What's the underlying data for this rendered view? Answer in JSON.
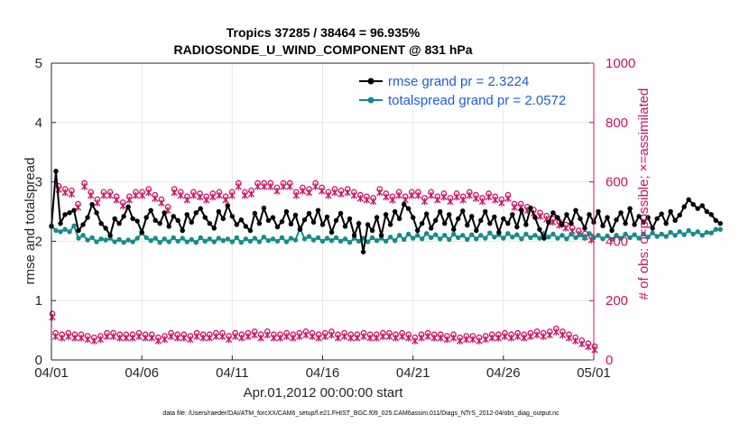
{
  "chart_data": {
    "type": "line",
    "title_line1": "Tropics 37285 / 38464 = 96.935%",
    "title_line2": "RADIOSONDE_U_WIND_COMPONENT @ 831 hPa",
    "xlabel": "Apr.01,2012 00:00:00 start",
    "ylabel_left": "rmse and totalspread",
    "ylabel_right": "# of obs: o=possible; ×=assimilated",
    "xlim": [
      0,
      30
    ],
    "ylim_left": [
      0,
      5
    ],
    "ylim_right": [
      0,
      1000
    ],
    "x_ticks": [
      0,
      5,
      10,
      15,
      20,
      25,
      30
    ],
    "x_tick_labels": [
      "04/01",
      "04/06",
      "04/11",
      "04/16",
      "04/21",
      "04/26",
      "05/01"
    ],
    "y_left_ticks": [
      "0",
      "1",
      "2",
      "3",
      "4",
      "5"
    ],
    "y_right_ticks": [
      "0",
      "200",
      "400",
      "600",
      "800",
      "1000"
    ],
    "legend": {
      "position": "top-right",
      "rmse_label": "rmse grand pr = 2.3224",
      "spread_label": "totalspread grand pr = 2.0572"
    },
    "colors": {
      "rmse": "#000000",
      "spread": "#168b8b",
      "obs": "#d11060",
      "legend_text": "#1a5fd6"
    },
    "footnote": "data file: /Users/raeder/DAI/ATM_forcXX/CAM6_setup/f.e21.FHIST_BGC.f09_025.CAM6assim.011/Diags_NTrS_2012-04/obs_diag_output.nc",
    "step_days": 0.25,
    "series": [
      {
        "name": "rmse",
        "values": [
          2.25,
          3.18,
          2.3,
          2.45,
          2.48,
          2.52,
          2.18,
          2.28,
          2.4,
          2.62,
          2.48,
          2.3,
          2.22,
          2.1,
          2.38,
          2.3,
          2.42,
          2.58,
          2.38,
          2.34,
          2.15,
          2.4,
          2.52,
          2.35,
          2.3,
          2.48,
          2.25,
          2.42,
          2.35,
          2.18,
          2.45,
          2.32,
          2.48,
          2.55,
          2.4,
          2.3,
          2.22,
          2.5,
          2.38,
          2.6,
          2.42,
          2.28,
          2.36,
          2.25,
          2.18,
          2.47,
          2.3,
          2.56,
          2.35,
          2.4,
          2.24,
          2.33,
          2.5,
          2.29,
          2.44,
          2.2,
          2.36,
          2.47,
          2.32,
          2.52,
          2.28,
          2.41,
          2.15,
          2.35,
          2.47,
          2.25,
          2.38,
          2.1,
          2.3,
          1.82,
          2.28,
          2.18,
          2.4,
          2.1,
          2.45,
          2.28,
          2.5,
          2.38,
          2.62,
          2.55,
          2.4,
          2.18,
          2.3,
          2.46,
          2.22,
          2.35,
          2.5,
          2.3,
          2.45,
          2.2,
          2.38,
          2.51,
          2.27,
          2.42,
          2.18,
          2.35,
          2.5,
          2.3,
          2.41,
          2.15,
          2.38,
          2.3,
          2.45,
          2.24,
          2.52,
          2.28,
          2.56,
          2.4,
          2.2,
          2.05,
          2.32,
          2.48,
          2.4,
          2.28,
          2.45,
          2.3,
          2.52,
          2.38,
          2.22,
          2.45,
          2.32,
          2.5,
          2.26,
          2.4,
          2.18,
          2.36,
          2.48,
          2.3,
          2.55,
          2.28,
          2.42,
          2.32,
          2.4,
          2.22,
          2.38,
          2.46,
          2.3,
          2.5,
          2.35,
          2.44,
          2.58,
          2.7,
          2.62,
          2.55,
          2.6,
          2.5,
          2.45,
          2.35,
          2.3
        ]
      },
      {
        "name": "totalspread",
        "values": [
          2.26,
          2.18,
          2.16,
          2.2,
          2.16,
          2.26,
          2.05,
          2.1,
          2.02,
          2.06,
          1.99,
          2.04,
          2.02,
          2.05,
          1.99,
          2.03,
          1.98,
          2.02,
          1.99,
          2.05,
          2.14,
          2.06,
          2.01,
          2.05,
          1.98,
          2.04,
          1.99,
          2.06,
          2.0,
          2.05,
          1.99,
          2.03,
          1.98,
          2.06,
          2.0,
          2.04,
          1.99,
          2.05,
          2.01,
          2.04,
          1.99,
          2.06,
          1.98,
          2.04,
          2.0,
          2.05,
          1.99,
          2.07,
          2.01,
          2.04,
          2.0,
          2.06,
          1.99,
          2.05,
          2.02,
          2.22,
          2.04,
          2.08,
          2.02,
          2.06,
          2.0,
          2.05,
          2.01,
          2.06,
          2.0,
          2.04,
          1.98,
          2.05,
          2.0,
          2.05,
          1.99,
          2.06,
          2.01,
          2.05,
          2.0,
          2.07,
          2.01,
          2.1,
          2.03,
          2.12,
          2.05,
          2.1,
          2.04,
          2.13,
          2.06,
          2.11,
          2.04,
          2.1,
          2.03,
          2.12,
          2.06,
          2.1,
          2.03,
          2.11,
          2.04,
          2.1,
          2.05,
          2.14,
          2.07,
          2.11,
          2.05,
          2.13,
          2.07,
          2.11,
          2.04,
          2.12,
          2.06,
          2.1,
          2.05,
          2.13,
          2.07,
          2.12,
          2.05,
          2.1,
          2.04,
          2.12,
          2.06,
          2.11,
          2.05,
          2.13,
          2.06,
          2.1,
          2.04,
          2.09,
          2.03,
          2.1,
          2.05,
          2.12,
          2.06,
          2.11,
          2.05,
          2.12,
          2.07,
          2.14,
          2.08,
          2.12,
          2.08,
          2.15,
          2.1,
          2.16,
          2.11,
          2.18,
          2.12,
          2.16,
          2.1,
          2.15,
          2.14,
          2.2,
          2.2
        ]
      },
      {
        "name": "obs_possible",
        "values": [
          150,
          85,
          580,
          80,
          570,
          85,
          565,
          80,
          520,
          80,
          590,
          75,
          560,
          70,
          535,
          75,
          560,
          85,
          560,
          85,
          545,
          80,
          525,
          80,
          545,
          80,
          560,
          85,
          560,
          80,
          570,
          80,
          550,
          70,
          535,
          75,
          510,
          85,
          570,
          80,
          560,
          80,
          545,
          75,
          560,
          85,
          555,
          80,
          545,
          80,
          555,
          85,
          560,
          85,
          545,
          75,
          560,
          85,
          590,
          80,
          560,
          85,
          565,
          90,
          590,
          80,
          590,
          90,
          590,
          80,
          575,
          80,
          590,
          85,
          590,
          80,
          560,
          85,
          575,
          90,
          570,
          85,
          590,
          80,
          575,
          85,
          560,
          90,
          570,
          80,
          565,
          85,
          570,
          80,
          560,
          80,
          550,
          85,
          545,
          80,
          540,
          80,
          570,
          85,
          555,
          85,
          545,
          80,
          560,
          85,
          545,
          80,
          560,
          70,
          560,
          80,
          540,
          85,
          560,
          80,
          545,
          80,
          555,
          75,
          540,
          80,
          555,
          70,
          545,
          75,
          560,
          75,
          550,
          70,
          540,
          75,
          555,
          80,
          545,
          80,
          535,
          85,
          550,
          80,
          520,
          85,
          520,
          80,
          510,
          85,
          500,
          90,
          490,
          85,
          480,
          90,
          470,
          100,
          460,
          90,
          450,
          80,
          440,
          70,
          430,
          60,
          420,
          50,
          410,
          40
        ],
        "sample_x": [
          0.1,
          0.5,
          1.0,
          1.5,
          2.0,
          2.5,
          3.0,
          3.5,
          4.0,
          4.5,
          5.0,
          5.5,
          6.0,
          6.5,
          7.0,
          7.5,
          8.0,
          8.5,
          9.0,
          9.5,
          10.0,
          10.5,
          11.0,
          11.5,
          12.0,
          12.5,
          13.0,
          13.5,
          14.0,
          14.5,
          15.0,
          15.5,
          16.0,
          16.5,
          17.0,
          17.5,
          18.0,
          18.5,
          19.0,
          19.5,
          20.0,
          20.5,
          21.0,
          21.5,
          22.0,
          22.5,
          23.0,
          23.5,
          24.0,
          24.5,
          25.0,
          25.5,
          26.0,
          26.5,
          27.0,
          27.5,
          28.0,
          28.5,
          29.0,
          29.5,
          29.9
        ]
      }
    ]
  }
}
